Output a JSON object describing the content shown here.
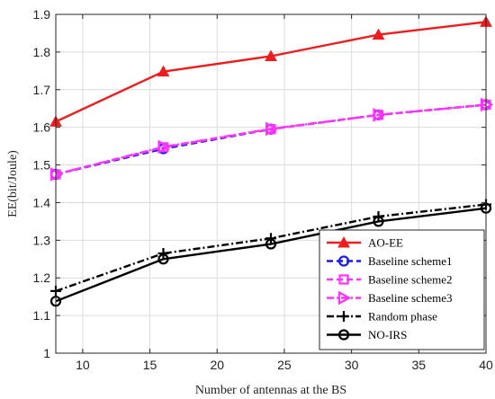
{
  "chart_data": {
    "type": "line",
    "title": "",
    "xlabel": "Number of antennas at the BS",
    "ylabel": "EE(bit/Joule)",
    "xlim": [
      8,
      40
    ],
    "ylim": [
      1,
      1.9
    ],
    "xticks": [
      10,
      15,
      20,
      25,
      30,
      35,
      40
    ],
    "yticks": [
      1,
      1.1,
      1.2,
      1.3,
      1.4,
      1.5,
      1.6,
      1.7,
      1.8,
      1.9
    ],
    "grid": true,
    "legend_position": "bottom-right",
    "x": [
      8,
      16,
      24,
      32,
      40
    ],
    "series": [
      {
        "name": "AO-EE",
        "values": [
          1.615,
          1.748,
          1.789,
          1.846,
          1.88
        ],
        "color": "#ee1c1c",
        "dash": "solid",
        "marker": "triangle-up"
      },
      {
        "name": "Baseline scheme1",
        "values": [
          1.475,
          1.543,
          1.595,
          1.633,
          1.66
        ],
        "color": "#1a1aee",
        "dash": "dashed",
        "marker": "circle"
      },
      {
        "name": "Baseline scheme2",
        "values": [
          1.475,
          1.547,
          1.595,
          1.633,
          1.66
        ],
        "color": "#ff33ff",
        "dash": "dashed",
        "marker": "square"
      },
      {
        "name": "Baseline scheme3",
        "values": [
          1.475,
          1.548,
          1.596,
          1.633,
          1.66
        ],
        "color": "#ff33ff",
        "dash": "dashdot",
        "marker": "triangle-right"
      },
      {
        "name": "Random phase",
        "values": [
          1.165,
          1.265,
          1.305,
          1.363,
          1.395
        ],
        "color": "#000000",
        "dash": "dashdot",
        "marker": "plus"
      },
      {
        "name": "NO-IRS",
        "values": [
          1.138,
          1.25,
          1.29,
          1.35,
          1.385
        ],
        "color": "#000000",
        "dash": "solid",
        "marker": "circle"
      }
    ]
  }
}
